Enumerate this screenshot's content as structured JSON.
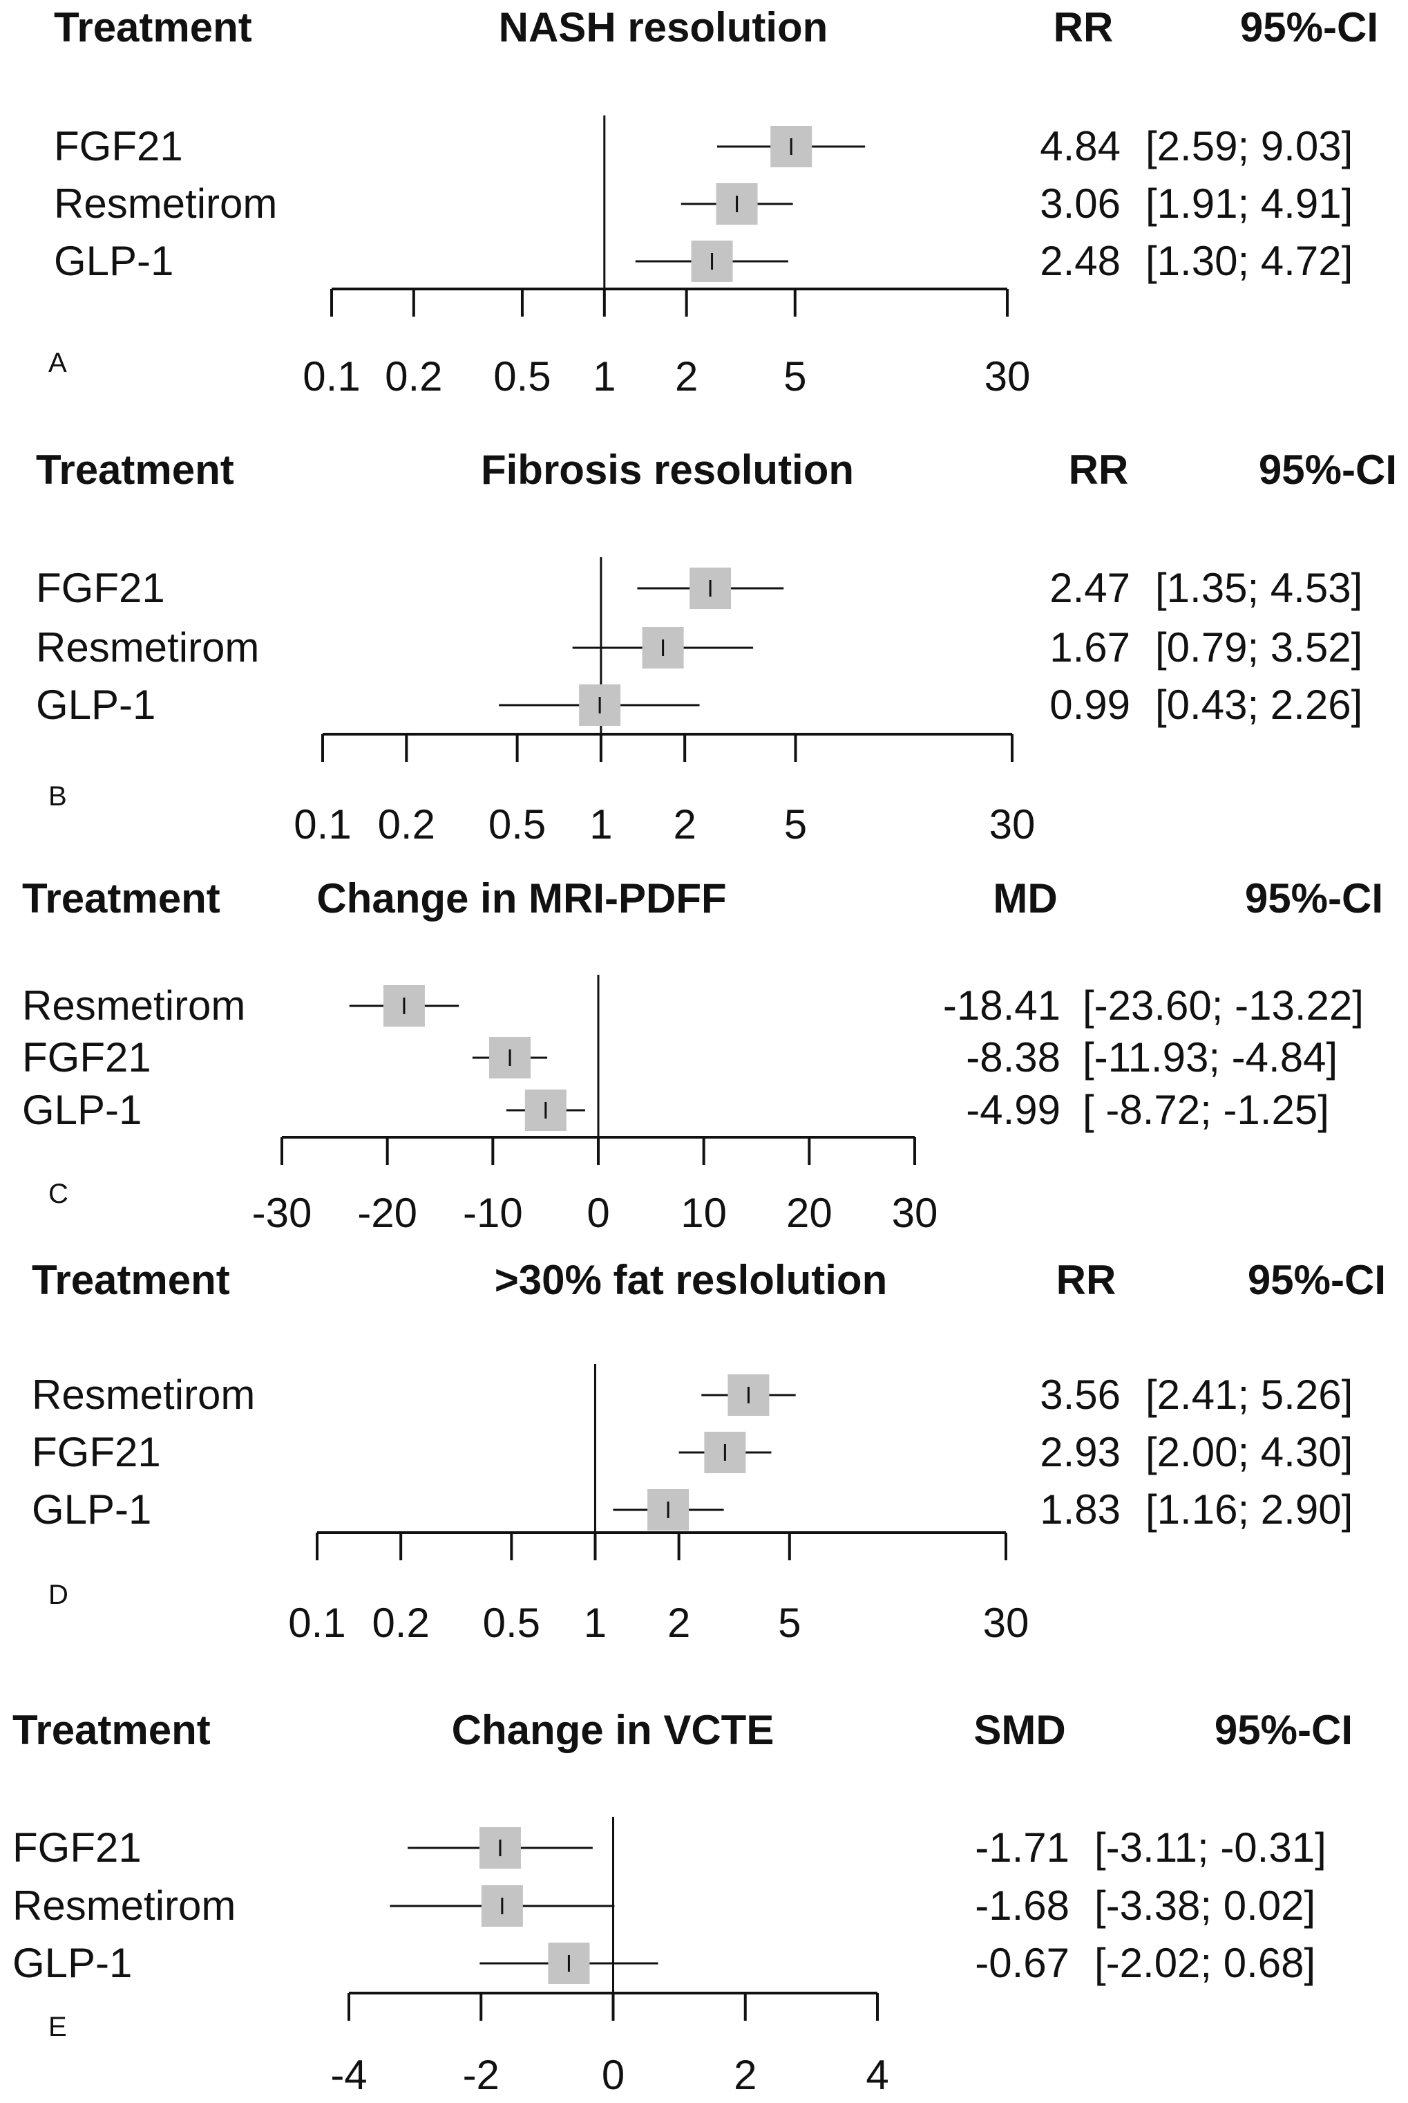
{
  "chart_data": [
    {
      "panel": "A",
      "type": "forest",
      "scale": "log",
      "headers": {
        "treatment": "Treatment",
        "outcome": "NASH resolution",
        "measure": "RR",
        "ci": "95%-CI"
      },
      "ticks": [
        0.1,
        0.2,
        0.5,
        1,
        2,
        5,
        30
      ],
      "tick_labels": [
        "0.1",
        "0.2",
        "0.5",
        "1",
        "2",
        "5",
        "30"
      ],
      "reference": 1,
      "rows": [
        {
          "treatment": "FGF21",
          "est": 4.84,
          "lo": 2.59,
          "hi": 9.03,
          "est_label": "4.84",
          "ci_label": "[2.59; 9.03]"
        },
        {
          "treatment": "Resmetirom",
          "est": 3.06,
          "lo": 1.91,
          "hi": 4.91,
          "est_label": "3.06",
          "ci_label": "[1.91; 4.91]"
        },
        {
          "treatment": "GLP-1",
          "est": 2.48,
          "lo": 1.3,
          "hi": 4.72,
          "est_label": "2.48",
          "ci_label": "[1.30; 4.72]"
        }
      ]
    },
    {
      "panel": "B",
      "type": "forest",
      "scale": "log",
      "headers": {
        "treatment": "Treatment",
        "outcome": "Fibrosis resolution",
        "measure": "RR",
        "ci": "95%-CI"
      },
      "ticks": [
        0.1,
        0.2,
        0.5,
        1,
        2,
        5,
        30
      ],
      "tick_labels": [
        "0.1",
        "0.2",
        "0.5",
        "1",
        "2",
        "5",
        "30"
      ],
      "reference": 1,
      "rows": [
        {
          "treatment": "FGF21",
          "est": 2.47,
          "lo": 1.35,
          "hi": 4.53,
          "est_label": "2.47",
          "ci_label": "[1.35; 4.53]"
        },
        {
          "treatment": "Resmetirom",
          "est": 1.67,
          "lo": 0.79,
          "hi": 3.52,
          "est_label": "1.67",
          "ci_label": "[0.79; 3.52]"
        },
        {
          "treatment": "GLP-1",
          "est": 0.99,
          "lo": 0.43,
          "hi": 2.26,
          "est_label": "0.99",
          "ci_label": "[0.43; 2.26]"
        }
      ]
    },
    {
      "panel": "C",
      "type": "forest",
      "scale": "linear",
      "headers": {
        "treatment": "Treatment",
        "outcome": "Change in MRI-PDFF",
        "measure": "MD",
        "ci": "95%-CI"
      },
      "ticks": [
        -30,
        -20,
        -10,
        0,
        10,
        20,
        30
      ],
      "tick_labels": [
        "-30",
        "-20",
        "-10",
        "0",
        "10",
        "20",
        "30"
      ],
      "reference": 0,
      "rows": [
        {
          "treatment": "Resmetirom",
          "est": -18.41,
          "lo": -23.6,
          "hi": -13.22,
          "est_label": "-18.41",
          "ci_label": "[-23.60; -13.22]"
        },
        {
          "treatment": "FGF21",
          "est": -8.38,
          "lo": -11.93,
          "hi": -4.84,
          "est_label": "-8.38",
          "ci_label": "[-11.93;  -4.84]"
        },
        {
          "treatment": "GLP-1",
          "est": -4.99,
          "lo": -8.72,
          "hi": -1.25,
          "est_label": "-4.99",
          "ci_label": "[ -8.72;  -1.25]"
        }
      ]
    },
    {
      "panel": "D",
      "type": "forest",
      "scale": "log",
      "headers": {
        "treatment": "Treatment",
        "outcome": ">30% fat reslolution",
        "measure": "RR",
        "ci": "95%-CI"
      },
      "ticks": [
        0.1,
        0.2,
        0.5,
        1,
        2,
        5,
        30
      ],
      "tick_labels": [
        "0.1",
        "0.2",
        "0.5",
        "1",
        "2",
        "5",
        "30"
      ],
      "reference": 1,
      "rows": [
        {
          "treatment": "Resmetirom",
          "est": 3.56,
          "lo": 2.41,
          "hi": 5.26,
          "est_label": "3.56",
          "ci_label": "[2.41; 5.26]"
        },
        {
          "treatment": "FGF21",
          "est": 2.93,
          "lo": 2.0,
          "hi": 4.3,
          "est_label": "2.93",
          "ci_label": "[2.00; 4.30]"
        },
        {
          "treatment": "GLP-1",
          "est": 1.83,
          "lo": 1.16,
          "hi": 2.9,
          "est_label": "1.83",
          "ci_label": "[1.16; 2.90]"
        }
      ]
    },
    {
      "panel": "E",
      "type": "forest",
      "scale": "linear",
      "headers": {
        "treatment": "Treatment",
        "outcome": "Change in VCTE",
        "measure": "SMD",
        "ci": "95%-CI"
      },
      "ticks": [
        -4,
        -2,
        0,
        2,
        4
      ],
      "tick_labels": [
        "-4",
        "-2",
        "0",
        "2",
        "4"
      ],
      "reference": 0,
      "rows": [
        {
          "treatment": "FGF21",
          "est": -1.71,
          "lo": -3.11,
          "hi": -0.31,
          "est_label": "-1.71",
          "ci_label": "[-3.11; -0.31]"
        },
        {
          "treatment": "Resmetirom",
          "est": -1.68,
          "lo": -3.38,
          "hi": 0.02,
          "est_label": "-1.68",
          "ci_label": "[-3.38;  0.02]"
        },
        {
          "treatment": "GLP-1",
          "est": -0.67,
          "lo": -2.02,
          "hi": 0.68,
          "est_label": "-0.67",
          "ci_label": "[-2.02;  0.68]"
        }
      ]
    }
  ],
  "colors": {
    "marker_fill": "#c4c4c4",
    "ink": "#111111"
  }
}
